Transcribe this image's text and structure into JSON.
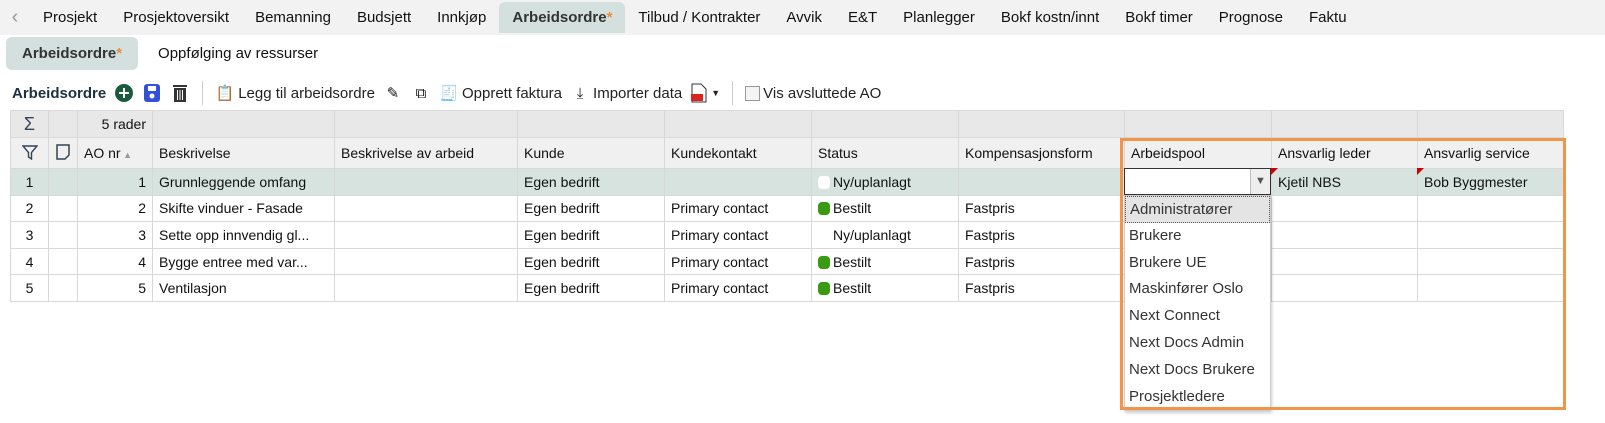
{
  "tabs": [
    "Prosjekt",
    "Prosjektoversikt",
    "Bemanning",
    "Budsjett",
    "Innkjøp",
    "Arbeidsordre",
    "Tilbud / Kontrakter",
    "Avvik",
    "E&T",
    "Planlegger",
    "Bokf kostn/innt",
    "Bokf timer",
    "Prognose",
    "Faktu"
  ],
  "active_tab": "Arbeidsordre",
  "subtabs": [
    "Arbeidsordre",
    "Oppfølging av ressurser"
  ],
  "toolbar": {
    "title": "Arbeidsordre",
    "add_label": "Legg til arbeidsordre",
    "invoice_label": "Opprett faktura",
    "import_label": "Importer data",
    "show_closed_label": "Vis avsluttede AO",
    "show_closed_checked": false
  },
  "grid": {
    "row_count": "5 rader",
    "columns": [
      "AO nr",
      "Beskrivelse",
      "Beskrivelse av arbeid",
      "Kunde",
      "Kundekontakt",
      "Status",
      "Kompensasjonsform",
      "Arbeidspool",
      "Ansvarlig leder",
      "Ansvarlig service"
    ],
    "rows": [
      {
        "idx": "1",
        "ao": "1",
        "beskrivelse": "Grunnleggende omfang",
        "arbeid": "",
        "kunde": "Egen bedrift",
        "kontakt": "",
        "status": "Ny/uplanlagt",
        "status_color": "#ffffff",
        "komp": "",
        "pool": "",
        "leder": "Kjetil NBS",
        "service": "Bob Byggmester"
      },
      {
        "idx": "2",
        "ao": "2",
        "beskrivelse": "Skifte vinduer - Fasade",
        "arbeid": "",
        "kunde": "Egen bedrift",
        "kontakt": "Primary contact",
        "status": "Bestilt",
        "status_color": "#3a9a12",
        "komp": "Fastpris",
        "pool": "",
        "leder": "",
        "service": ""
      },
      {
        "idx": "3",
        "ao": "3",
        "beskrivelse": "Sette opp innvendig gl...",
        "arbeid": "",
        "kunde": "Egen bedrift",
        "kontakt": "Primary contact",
        "status": "Ny/uplanlagt",
        "status_color": "",
        "komp": "Fastpris",
        "pool": "",
        "leder": "",
        "service": ""
      },
      {
        "idx": "4",
        "ao": "4",
        "beskrivelse": "Bygge entree med var...",
        "arbeid": "",
        "kunde": "Egen bedrift",
        "kontakt": "Primary contact",
        "status": "Bestilt",
        "status_color": "#3a9a12",
        "komp": "Fastpris",
        "pool": "",
        "leder": "",
        "service": ""
      },
      {
        "idx": "5",
        "ao": "5",
        "beskrivelse": "Ventilasjon",
        "arbeid": "",
        "kunde": "Egen bedrift",
        "kontakt": "Primary contact",
        "status": "Bestilt",
        "status_color": "#3a9a12",
        "komp": "Fastpris",
        "pool": "",
        "leder": "",
        "service": ""
      }
    ]
  },
  "dropdown": {
    "options": [
      "Administratører",
      "Brukere",
      "Brukere UE",
      "Maskinfører Oslo",
      "Next Connect",
      "Next Docs Admin",
      "Next Docs Brukere",
      "Prosjektledere"
    ],
    "highlighted": "Administratører"
  },
  "colors": {
    "accent": "#d3e0dd",
    "highlight_border": "#f39449",
    "status_green": "#3a9a12"
  }
}
